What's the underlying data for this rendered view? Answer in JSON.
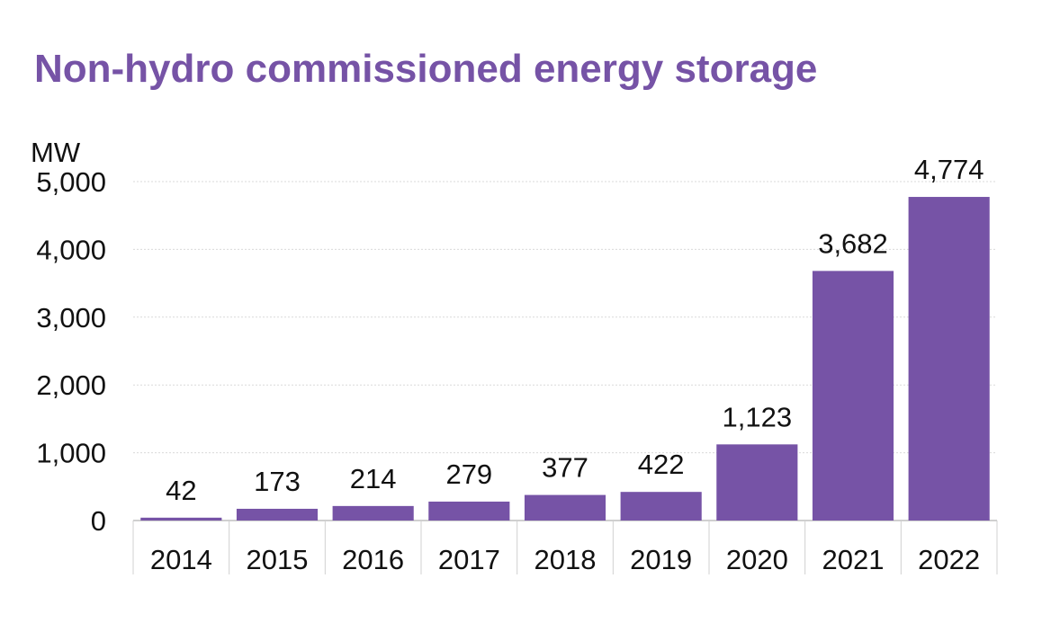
{
  "chart_data": {
    "type": "bar",
    "title": "Non-hydro commissioned energy storage",
    "ylabel": "MW",
    "xlabel": "",
    "categories": [
      "2014",
      "2015",
      "2016",
      "2017",
      "2018",
      "2019",
      "2020",
      "2021",
      "2022"
    ],
    "values": [
      42,
      173,
      214,
      279,
      377,
      422,
      1123,
      3682,
      4774
    ],
    "value_labels": [
      "42",
      "173",
      "214",
      "279",
      "377",
      "422",
      "1,123",
      "3,682",
      "4,774"
    ],
    "ylim": [
      0,
      5000
    ],
    "yticks": [
      0,
      1000,
      2000,
      3000,
      4000,
      5000
    ],
    "ytick_labels": [
      "0",
      "1,000",
      "2,000",
      "3,000",
      "4,000",
      "5,000"
    ],
    "grid": true,
    "legend": "none",
    "colors": {
      "bar": "#7653a6",
      "title": "#7653a6",
      "grid": "#d9d9d9",
      "text": "#111111"
    }
  }
}
